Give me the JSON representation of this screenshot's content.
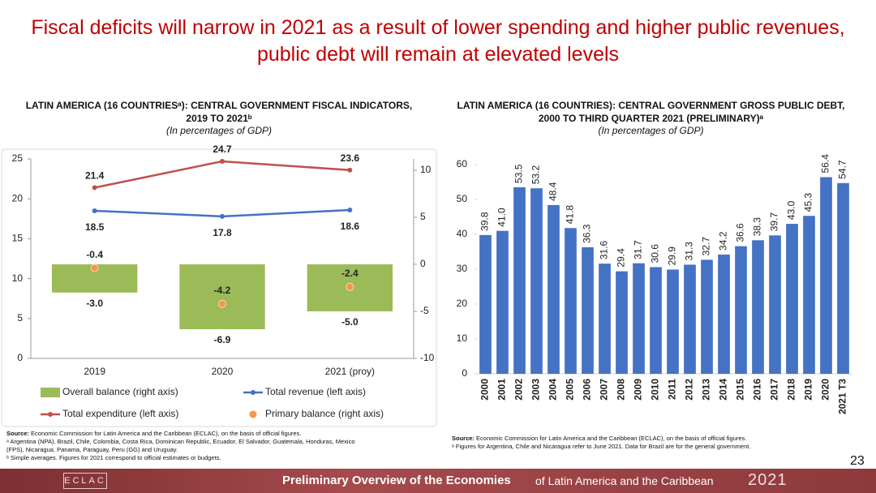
{
  "title": "Fiscal deficits will narrow in 2021 as a result of lower spending and higher public revenues, public debt will remain at elevated levels",
  "page_number": "23",
  "footer": {
    "logo": "ECLAC",
    "title": "Preliminary Overview of the Economies",
    "subtitle": "of Latin America and the Caribbean",
    "year": "2021"
  },
  "chart_data": [
    {
      "type": "combo",
      "title": "LATIN AMERICA (16 COUNTRIESᵃ): CENTRAL GOVERNMENT FISCAL INDICATORS, 2019 TO 2021ᵇ",
      "subtitle": "(In percentages of GDP)",
      "categories": [
        "2019",
        "2020",
        "2021 (proy)"
      ],
      "series": [
        {
          "name": "Overall balance (right axis)",
          "type": "bar",
          "axis": "y2",
          "color": "#9bbb59",
          "values": [
            -3.0,
            -6.9,
            -5.0
          ],
          "value_labels": [
            "-3.0",
            "-6.9",
            "-5.0"
          ]
        },
        {
          "name": "Total revenue (left axis)",
          "type": "line",
          "color": "#4472c4",
          "values": [
            18.5,
            17.8,
            18.6
          ]
        },
        {
          "name": "Total expenditure (left axis)",
          "type": "line",
          "color": "#c0504d",
          "values": [
            21.4,
            24.7,
            23.6
          ]
        },
        {
          "name": "Primary balance (right axis)",
          "type": "scatter",
          "axis": "y2",
          "color": "#f79646",
          "values": [
            -0.4,
            -4.2,
            -2.4
          ]
        }
      ],
      "ylim": [
        0,
        25
      ],
      "yticks": [
        0,
        5,
        10,
        15,
        20,
        25
      ],
      "y2lim": [
        -10,
        11.2
      ],
      "y2ticks": [
        -10,
        -5,
        0,
        5,
        10
      ],
      "legend": "bottom",
      "source_label": "Source:",
      "source": "Economic Commission for Latin America and the Caribbean (ECLAC), on the basis of official figures.",
      "notes": [
        "ᵃ Argentina (NPA), Brazil, Chile, Colombia, Costa Rica, Dominican Republic, Ecuador, El Salvador, Guatemala, Honduras, Mexico (FPS), Nicaragua, Panama, Paraguay, Peru (GG) and Uruguay.",
        "ᵇ Simple averages. Figures for 2021 correspond to official estimates or budgets."
      ]
    },
    {
      "type": "bar",
      "title": "LATIN AMERICA (16 COUNTRIES): CENTRAL GOVERNMENT GROSS PUBLIC DEBT, 2000 TO THIRD QUARTER 2021 (PRELIMINARY)ᵃ",
      "subtitle": "(In percentages of GDP)",
      "categories": [
        "2000",
        "2001",
        "2002",
        "2003",
        "2004",
        "2005",
        "2006",
        "2007",
        "2008",
        "2009",
        "2010",
        "2011",
        "2012",
        "2013",
        "2014",
        "2015",
        "2016",
        "2017",
        "2018",
        "2019",
        "2020",
        "2021 T3"
      ],
      "values": [
        39.8,
        41.0,
        53.5,
        53.2,
        48.4,
        41.8,
        36.3,
        31.6,
        29.4,
        31.7,
        30.6,
        29.9,
        31.3,
        32.7,
        34.2,
        36.6,
        38.3,
        39.7,
        43.0,
        45.3,
        56.4,
        54.7
      ],
      "value_labels": [
        "39.8",
        "41.0",
        "53.5",
        "53.2",
        "48.4",
        "41.8",
        "36.3",
        "31.6",
        "29.4",
        "31.7",
        "30.6",
        "29.9",
        "31.3",
        "32.7",
        "34.2",
        "36.6",
        "38.3",
        "39.7",
        "43.0",
        "45.3",
        "56.4",
        "54.7"
      ],
      "color": "#4472c4",
      "ylim": [
        0,
        65
      ],
      "yticks": [
        0,
        10,
        20,
        30,
        40,
        50,
        60
      ],
      "source_label": "Source:",
      "source": "Economic Commission for Latin America and the Caribbean (ECLAC), on the basis of official figures.",
      "notes": [
        "ᵃ Figures for Argentina, Chile and Nicaragua refer to June 2021. Data for Brazil are for the general government."
      ]
    }
  ]
}
